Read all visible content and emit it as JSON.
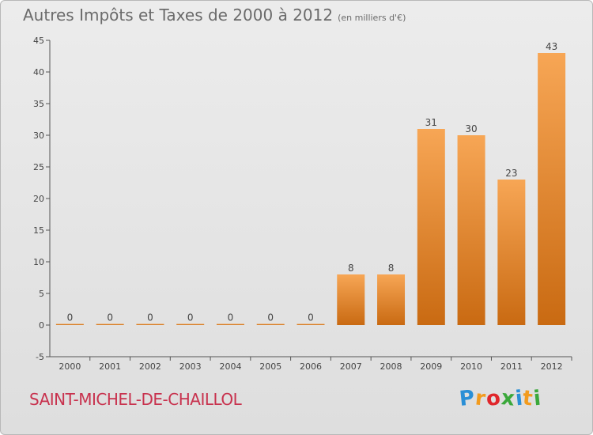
{
  "title": "Autres Impôts et Taxes de 2000 à 2012",
  "unit": "(en milliers d'€)",
  "commune": "SAINT-MICHEL-DE-CHAILLOL",
  "logo": {
    "letters": [
      "P",
      "r",
      "o",
      "x",
      "i",
      "t",
      "i"
    ],
    "colors": [
      "#2a8fd6",
      "#f29b1e",
      "#e0262b",
      "#3aa83a",
      "#2a8fd6",
      "#f29b1e",
      "#3aa83a"
    ]
  },
  "colors": {
    "bar_top": "#f7a655",
    "bar_bottom": "#c96a12",
    "axis": "#555555",
    "background": "#e6e6e6"
  },
  "chart_data": {
    "type": "bar",
    "categories": [
      "2000",
      "2001",
      "2002",
      "2003",
      "2004",
      "2005",
      "2006",
      "2007",
      "2008",
      "2009",
      "2010",
      "2011",
      "2012"
    ],
    "values": [
      0,
      0,
      0,
      0,
      0,
      0,
      0,
      8,
      8,
      31,
      30,
      23,
      43
    ],
    "ylim": [
      -5,
      45
    ],
    "yticks": [
      -5,
      0,
      5,
      10,
      15,
      20,
      25,
      30,
      35,
      40,
      45
    ],
    "grid": false
  }
}
